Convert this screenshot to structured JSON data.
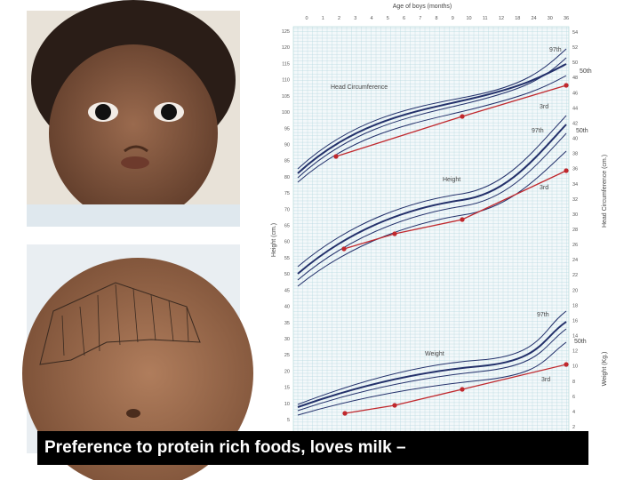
{
  "caption": "Preference to protein rich foods, loves milk –",
  "growth_chart": {
    "x_title": "Age of boys (months)",
    "x_ticks": [
      "0",
      "1",
      "2",
      "3",
      "4",
      "5",
      "6",
      "7",
      "8",
      "9",
      "10",
      "11",
      "12",
      "18",
      "24",
      "30",
      "36"
    ],
    "left_title": "Height (cm.)",
    "left_ticks": [
      "125",
      "120",
      "115",
      "110",
      "105",
      "100",
      "95",
      "90",
      "85",
      "80",
      "75",
      "70",
      "65",
      "60",
      "55",
      "50",
      "45",
      "40",
      "35",
      "30",
      "25",
      "20",
      "15",
      "10",
      "5"
    ],
    "right_title_top": "Head Circumference (cm.)",
    "right_title_bottom": "Weight (Kg.)",
    "right_ticks": [
      "54",
      "52",
      "50",
      "48",
      "46",
      "44",
      "42",
      "40",
      "38",
      "36",
      "34",
      "32",
      "30",
      "28",
      "26",
      "24",
      "22",
      "20",
      "18",
      "16",
      "14",
      "12",
      "10",
      "8",
      "6",
      "4",
      "2"
    ],
    "sections": [
      "Head Circumference",
      "Height",
      "Weight"
    ],
    "percentile_labels": [
      {
        "top": "97th",
        "mid": "50th",
        "low": "3rd"
      },
      {
        "top": "97th",
        "mid": "50th",
        "low": "3rd"
      },
      {
        "top": "97th",
        "mid": "50th",
        "low": "3rd"
      }
    ]
  }
}
